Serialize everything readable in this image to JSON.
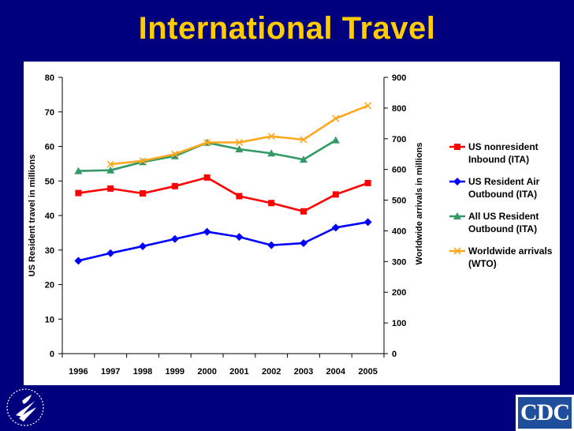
{
  "slide": {
    "title": "International Travel",
    "colors": {
      "background": "#00007f",
      "title": "#ffcc00"
    }
  },
  "logos": {
    "right_text": "CDC"
  },
  "chart_data": {
    "type": "line",
    "categories": [
      "1996",
      "1997",
      "1998",
      "1999",
      "2000",
      "2001",
      "2002",
      "2003",
      "2004",
      "2005"
    ],
    "y_left": {
      "label": "US Resident travel in millions",
      "ylim": [
        0,
        80
      ],
      "ticks": [
        0,
        10,
        20,
        30,
        40,
        50,
        60,
        70,
        80
      ]
    },
    "y_right": {
      "label": "Worldwide arrivals in millions",
      "ylim": [
        0,
        900
      ],
      "ticks": [
        0,
        100,
        200,
        300,
        400,
        500,
        600,
        700,
        800,
        900
      ]
    },
    "grid": false,
    "legend_position": "right",
    "series": [
      {
        "name": "US nonresident Inbound (ITA)",
        "axis": "left",
        "color": "#ff0000",
        "marker": "square",
        "values": [
          46.5,
          47.8,
          46.4,
          48.5,
          51.0,
          45.6,
          43.6,
          41.2,
          46.1,
          49.4
        ]
      },
      {
        "name": "US Resident  Air Outbound (ITA)",
        "axis": "left",
        "color": "#0000ff",
        "marker": "diamond",
        "values": [
          26.9,
          29.1,
          31.1,
          33.2,
          35.3,
          33.8,
          31.4,
          32.0,
          36.5,
          38.1
        ]
      },
      {
        "name": "All US Resident Outbound (ITA)",
        "axis": "left",
        "color": "#339966",
        "marker": "triangle",
        "values": [
          52.9,
          53.1,
          55.5,
          57.2,
          61.1,
          59.2,
          58.0,
          56.2,
          61.8,
          null
        ]
      },
      {
        "name": "Worldwide arrivals (WTO)",
        "axis": "right",
        "color": "#ffa820",
        "marker": "x",
        "values": [
          null,
          617,
          628,
          650,
          688,
          688,
          708,
          697,
          766,
          808
        ]
      }
    ]
  }
}
